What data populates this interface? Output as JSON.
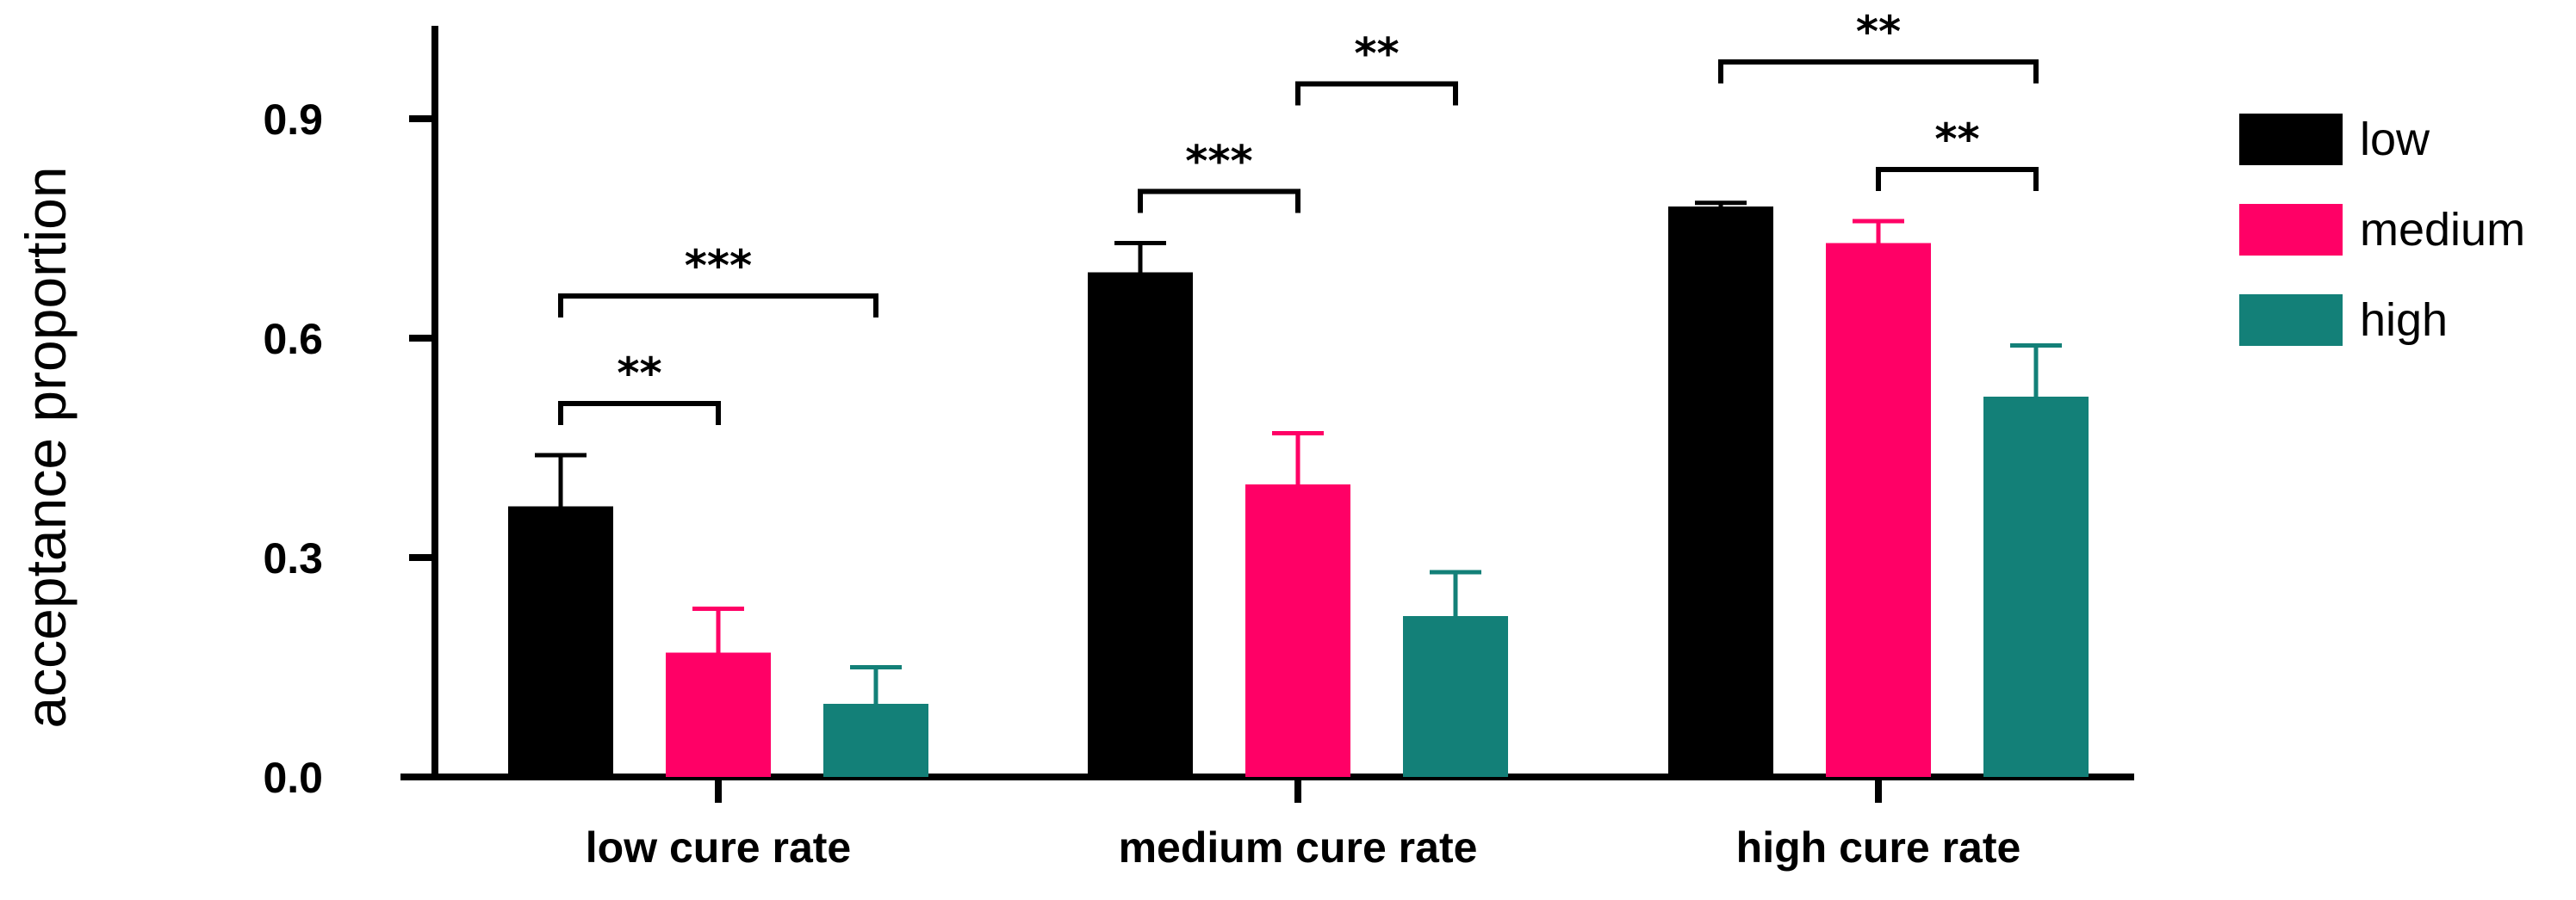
{
  "chart_data": {
    "type": "bar",
    "ylabel": "acceptance proportion",
    "xlabel": "",
    "ylim": [
      0,
      0.9
    ],
    "yticks": [
      "0.0",
      "0.3",
      "0.6",
      "0.9"
    ],
    "ytick_values": [
      0,
      0.3,
      0.6,
      0.9
    ],
    "grid": false,
    "legend_position": "right",
    "categories": [
      "low cure rate",
      "medium cure rate",
      "high cure rate"
    ],
    "series": [
      {
        "name": "low",
        "color": "#000000",
        "values": [
          0.37,
          0.69,
          0.78
        ],
        "errors": [
          0.07,
          0.04,
          0.005
        ]
      },
      {
        "name": "medium",
        "color": "#ff0066",
        "values": [
          0.17,
          0.4,
          0.73
        ],
        "errors": [
          0.06,
          0.07,
          0.03
        ]
      },
      {
        "name": "high",
        "color": "#138078",
        "values": [
          0.1,
          0.22,
          0.52
        ],
        "errors": [
          0.05,
          0.06,
          0.07
        ]
      }
    ],
    "significance": [
      {
        "category": 0,
        "from": 0,
        "to": 1,
        "label": "**"
      },
      {
        "category": 0,
        "from": 0,
        "to": 2,
        "label": "***"
      },
      {
        "category": 1,
        "from": 0,
        "to": 1,
        "label": "***"
      },
      {
        "category": 1,
        "from": 1,
        "to": 2,
        "label": "**"
      },
      {
        "category": 1,
        "from": 0,
        "to": 2,
        "label": "***"
      },
      {
        "category": 2,
        "from": 1,
        "to": 2,
        "label": "**"
      },
      {
        "category": 2,
        "from": 0,
        "to": 2,
        "label": "**"
      }
    ]
  }
}
